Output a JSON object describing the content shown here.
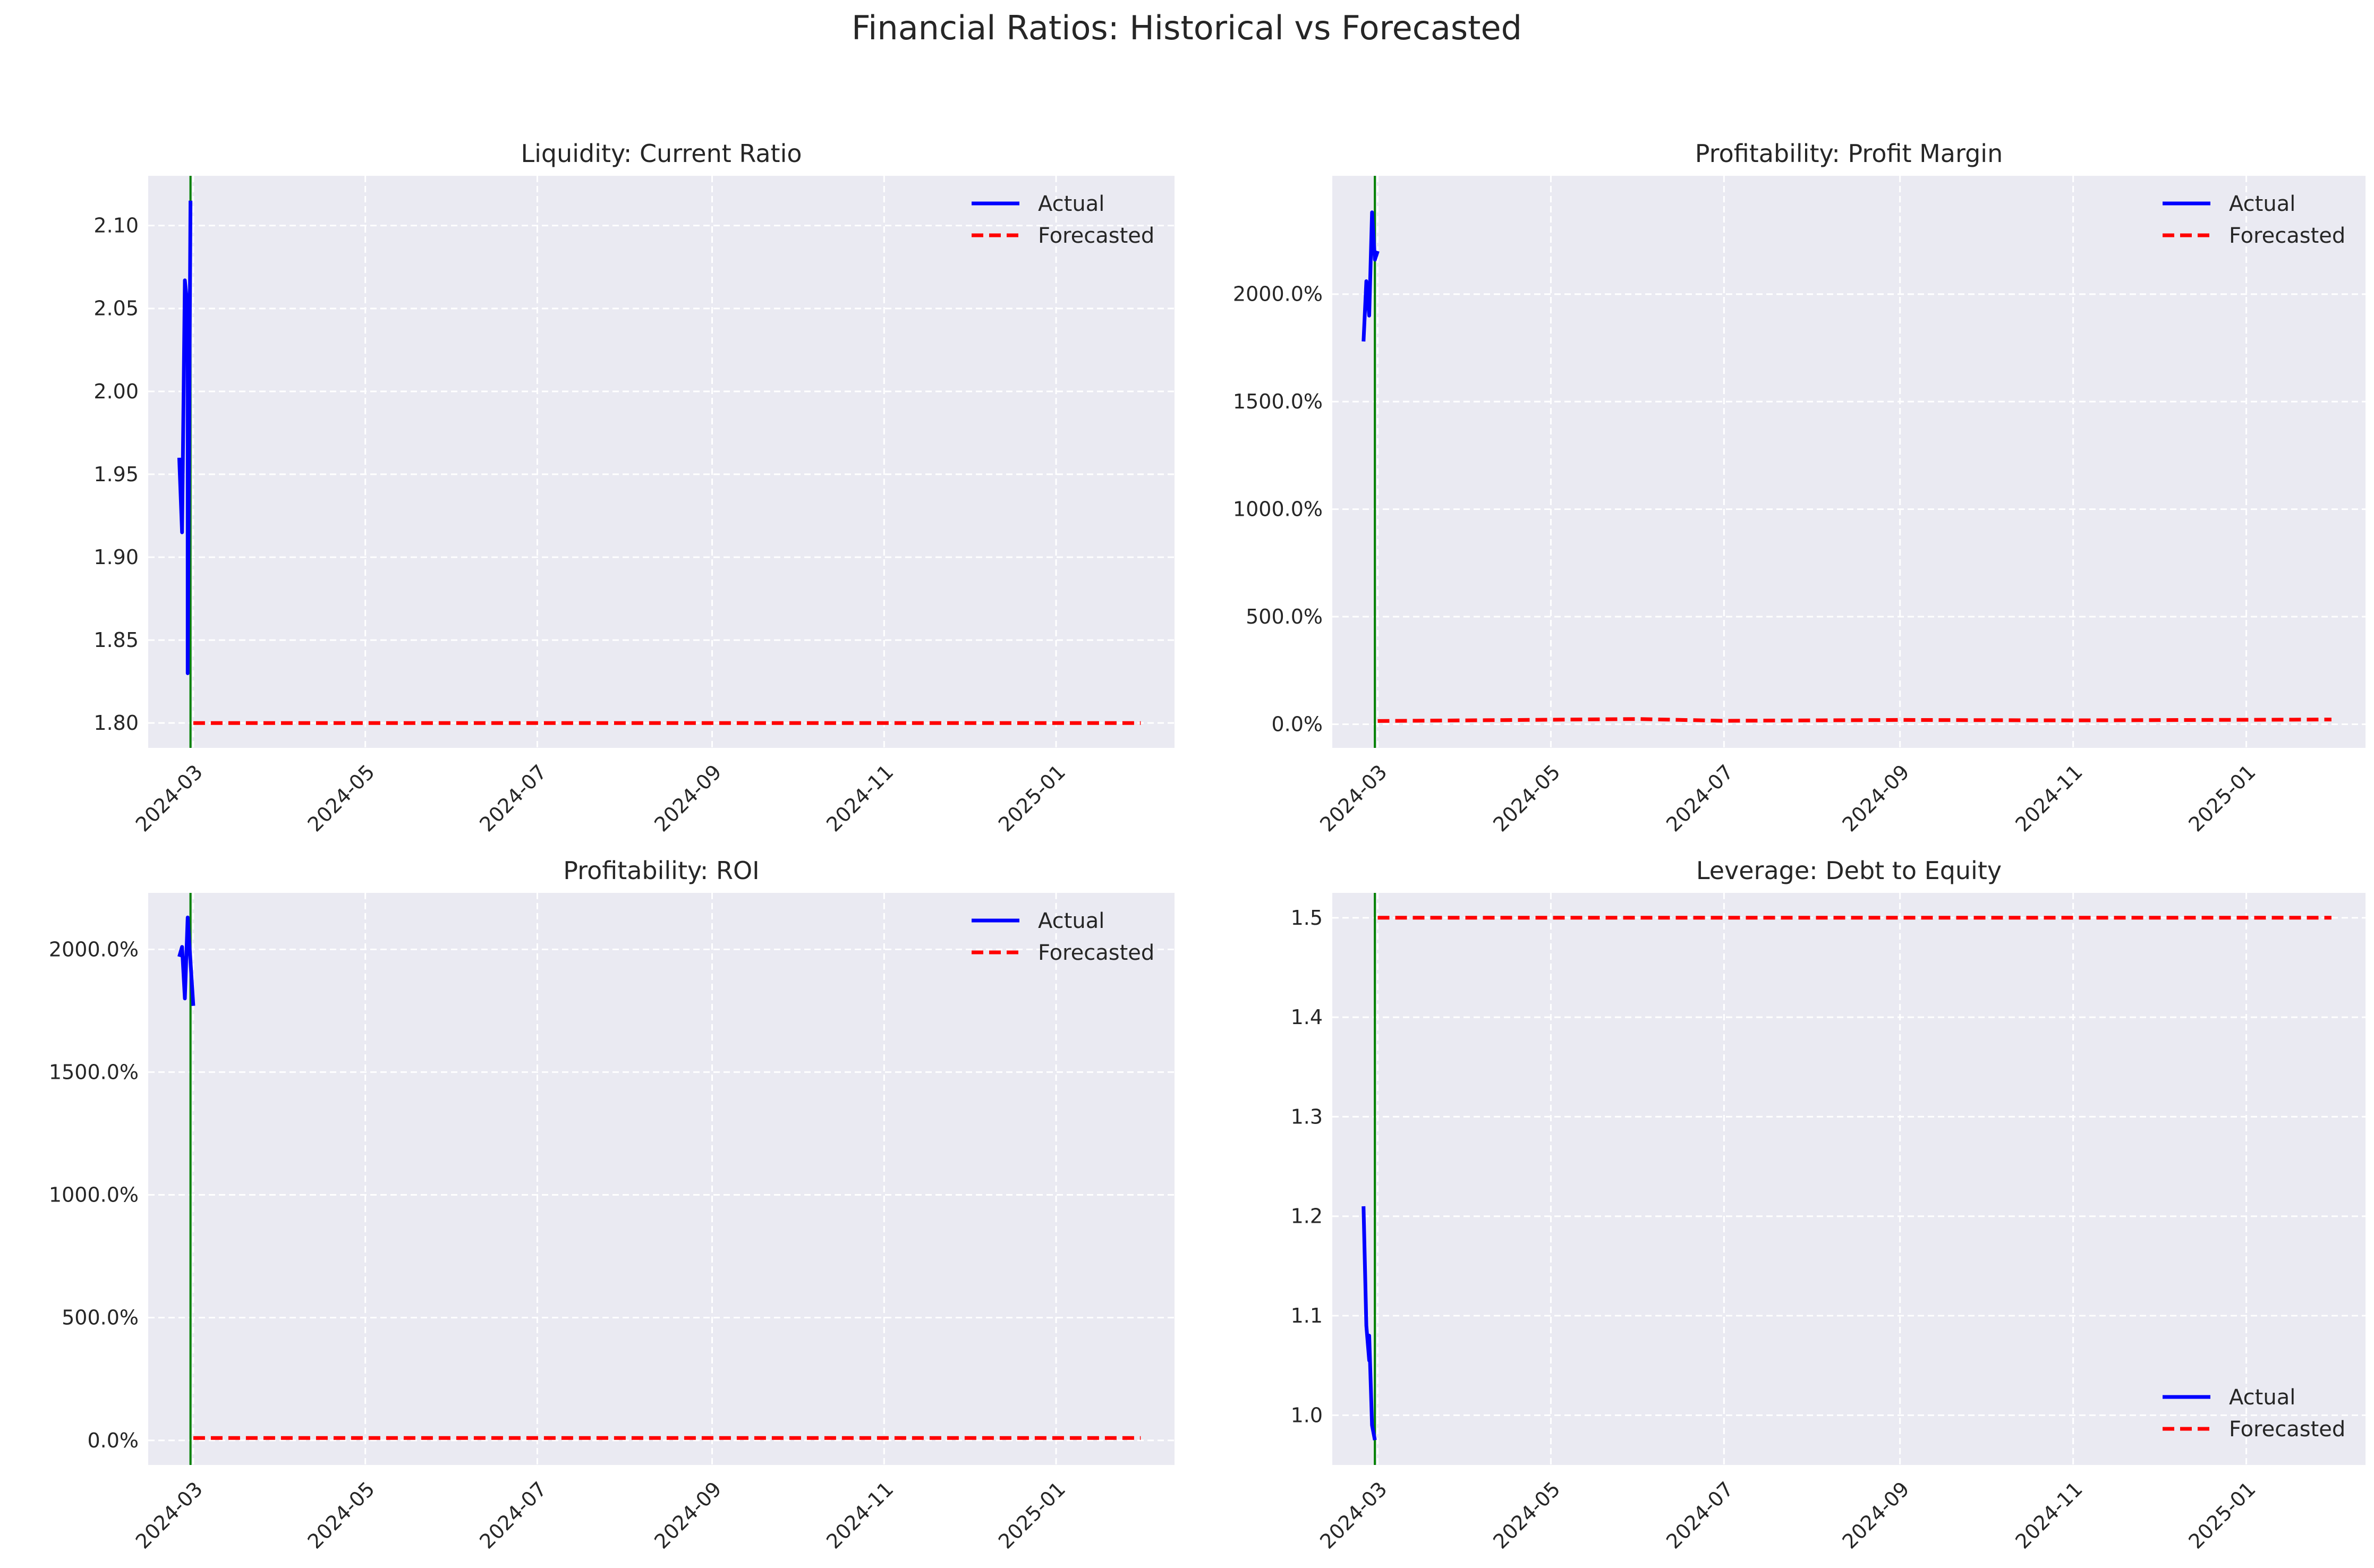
{
  "figure": {
    "title": "Financial Ratios: Historical vs Forecasted",
    "colors": {
      "panel_bg": "#EAEAF2",
      "grid": "#FFFFFF",
      "actual": "#0000FF",
      "forecast": "#FF0000",
      "cutoff": "#008000",
      "text": "#262626"
    }
  },
  "chart_data": [
    {
      "type": "line",
      "title": "Liquidity: Current Ratio",
      "xlabel": "",
      "ylabel": "",
      "x_range": [
        "2024-02-14",
        "2025-02-12"
      ],
      "xticks": [
        "2024-03",
        "2024-05",
        "2024-07",
        "2024-09",
        "2024-11",
        "2025-01"
      ],
      "ylim": [
        1.785,
        2.13
      ],
      "yticks": [
        1.8,
        1.85,
        1.9,
        1.95,
        2.0,
        2.05,
        2.1
      ],
      "ytick_labels": [
        "1.80",
        "1.85",
        "1.90",
        "1.95",
        "2.00",
        "2.05",
        "2.10"
      ],
      "grid": true,
      "legend_position": "upper right",
      "cutoff_date": "2024-02-29",
      "series": [
        {
          "name": "Actual",
          "style": "solid",
          "points": [
            [
              "2024-02-25",
              1.96
            ],
            [
              "2024-02-26",
              1.915
            ],
            [
              "2024-02-27",
              2.067
            ],
            [
              "2024-02-28",
              2.05
            ],
            [
              "2024-02-28",
              1.83
            ],
            [
              "2024-02-29",
              2.115
            ]
          ]
        },
        {
          "name": "Forecasted",
          "style": "dashed",
          "points": [
            [
              "2024-03-01",
              1.8
            ],
            [
              "2025-01-31",
              1.8
            ]
          ]
        }
      ]
    },
    {
      "type": "line",
      "title": "Profitability: Profit Margin",
      "xlabel": "",
      "ylabel": "",
      "x_range": [
        "2024-02-14",
        "2025-02-12"
      ],
      "xticks": [
        "2024-03",
        "2024-05",
        "2024-07",
        "2024-09",
        "2024-11",
        "2025-01"
      ],
      "ylim": [
        -110,
        2550
      ],
      "yticks": [
        0,
        500,
        1000,
        1500,
        2000
      ],
      "ytick_labels": [
        "0.0%",
        "500.0%",
        "1000.0%",
        "1500.0%",
        "2000.0%"
      ],
      "grid": true,
      "legend_position": "upper right",
      "cutoff_date": "2024-02-29",
      "series": [
        {
          "name": "Actual",
          "style": "solid",
          "points": [
            [
              "2024-02-25",
              1780
            ],
            [
              "2024-02-26",
              2060
            ],
            [
              "2024-02-27",
              1900
            ],
            [
              "2024-02-28",
              2380
            ],
            [
              "2024-02-29",
              2160
            ],
            [
              "2024-03-01",
              2200
            ]
          ]
        },
        {
          "name": "Forecasted",
          "style": "dashed",
          "points": [
            [
              "2024-03-01",
              15
            ],
            [
              "2024-04-01",
              18
            ],
            [
              "2024-06-01",
              24
            ],
            [
              "2024-07-01",
              16
            ],
            [
              "2024-09-01",
              20
            ],
            [
              "2024-11-01",
              18
            ],
            [
              "2025-01-31",
              22
            ]
          ]
        }
      ]
    },
    {
      "type": "line",
      "title": "Profitability: ROI",
      "xlabel": "",
      "ylabel": "",
      "x_range": [
        "2024-02-14",
        "2025-02-12"
      ],
      "xticks": [
        "2024-03",
        "2024-05",
        "2024-07",
        "2024-09",
        "2024-11",
        "2025-01"
      ],
      "ylim": [
        -100,
        2230
      ],
      "yticks": [
        0,
        500,
        1000,
        1500,
        2000
      ],
      "ytick_labels": [
        "0.0%",
        "500.0%",
        "1000.0%",
        "1500.0%",
        "2000.0%"
      ],
      "grid": true,
      "legend_position": "upper right",
      "cutoff_date": "2024-02-29",
      "series": [
        {
          "name": "Actual",
          "style": "solid",
          "points": [
            [
              "2024-02-25",
              1970
            ],
            [
              "2024-02-26",
              2010
            ],
            [
              "2024-02-27",
              1800
            ],
            [
              "2024-02-28",
              2130
            ],
            [
              "2024-03-01",
              1770
            ]
          ]
        },
        {
          "name": "Forecasted",
          "style": "dashed",
          "points": [
            [
              "2024-03-01",
              10
            ],
            [
              "2025-01-31",
              10
            ]
          ]
        }
      ]
    },
    {
      "type": "line",
      "title": "Leverage: Debt to Equity",
      "xlabel": "",
      "ylabel": "",
      "x_range": [
        "2024-02-14",
        "2025-02-12"
      ],
      "xticks": [
        "2024-03",
        "2024-05",
        "2024-07",
        "2024-09",
        "2024-11",
        "2025-01"
      ],
      "ylim": [
        0.95,
        1.525
      ],
      "yticks": [
        1.0,
        1.1,
        1.2,
        1.3,
        1.4,
        1.5
      ],
      "ytick_labels": [
        "1.0",
        "1.1",
        "1.2",
        "1.3",
        "1.4",
        "1.5"
      ],
      "grid": true,
      "legend_position": "lower right",
      "cutoff_date": "2024-02-29",
      "series": [
        {
          "name": "Actual",
          "style": "solid",
          "points": [
            [
              "2024-02-25",
              1.21
            ],
            [
              "2024-02-26",
              1.09
            ],
            [
              "2024-02-27",
              1.055
            ],
            [
              "2024-02-27",
              1.08
            ],
            [
              "2024-02-28",
              0.99
            ],
            [
              "2024-02-29",
              0.975
            ]
          ]
        },
        {
          "name": "Forecasted",
          "style": "dashed",
          "points": [
            [
              "2024-03-01",
              1.5
            ],
            [
              "2025-01-31",
              1.5
            ]
          ]
        }
      ]
    }
  ]
}
